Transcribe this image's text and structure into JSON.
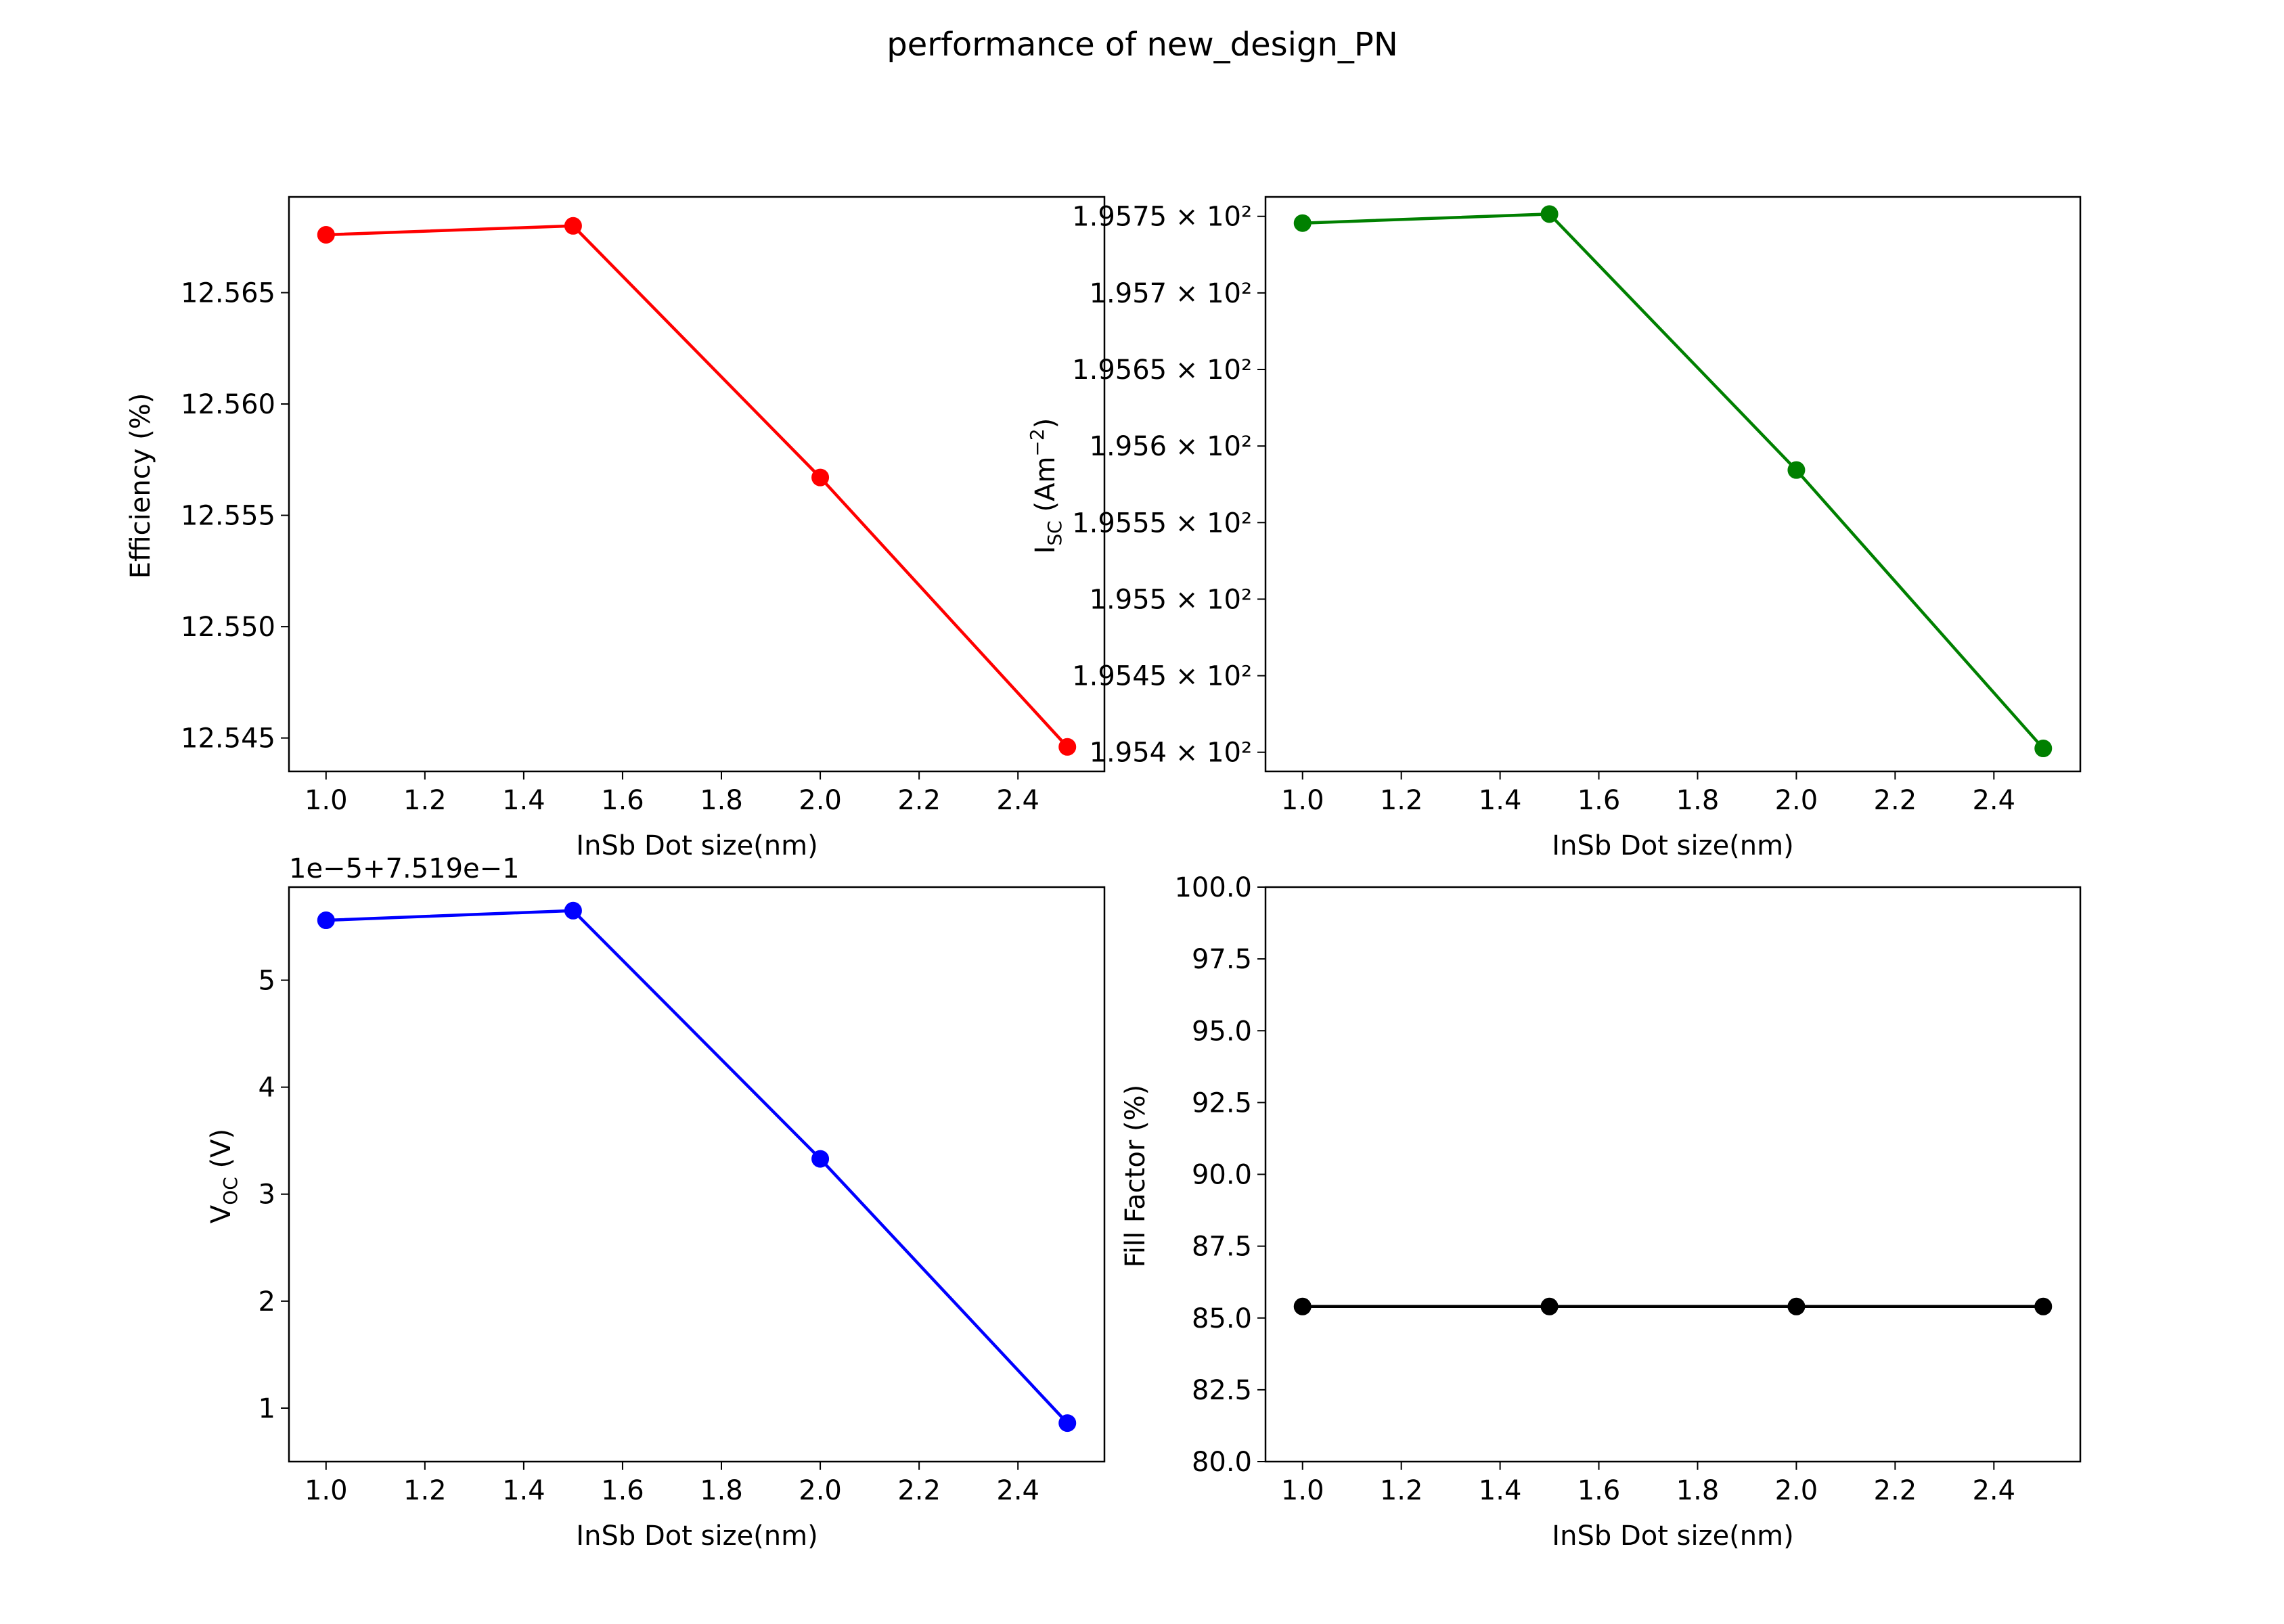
{
  "figure": {
    "title": "performance of new_design_PN"
  },
  "chart_data": [
    {
      "type": "line",
      "title": "",
      "xlabel": "InSb Dot size(nm)",
      "ylabel": "Efficiency (%)",
      "xlim": [
        0.925,
        2.575
      ],
      "ylim": [
        12.5435,
        12.5693
      ],
      "xticks": [
        1.0,
        1.2,
        1.4,
        1.6,
        1.8,
        2.0,
        2.2,
        2.4
      ],
      "xtick_labels": [
        "1.0",
        "1.2",
        "1.4",
        "1.6",
        "1.8",
        "2.0",
        "2.2",
        "2.4"
      ],
      "yticks": [
        12.545,
        12.55,
        12.555,
        12.56,
        12.565
      ],
      "ytick_labels": [
        "12.545",
        "12.550",
        "12.555",
        "12.560",
        "12.565"
      ],
      "offset_text": "",
      "series": [
        {
          "color": "#ff0000",
          "x": [
            1.0,
            1.5,
            2.0,
            2.5
          ],
          "y": [
            12.5676,
            12.568,
            12.5567,
            12.5446
          ]
        }
      ]
    },
    {
      "type": "line",
      "title": "",
      "xlabel": "InSb Dot size(nm)",
      "ylabel": "I_SC (Am^-2)",
      "ylabel_main": "I",
      "ylabel_sub": "SC",
      "ylabel_rest": " (Am",
      "ylabel_sup": "−2",
      "ylabel_end": ")",
      "xlim": [
        0.925,
        2.575
      ],
      "ylim": [
        195.3875,
        195.7627
      ],
      "xticks": [
        1.0,
        1.2,
        1.4,
        1.6,
        1.8,
        2.0,
        2.2,
        2.4
      ],
      "xtick_labels": [
        "1.0",
        "1.2",
        "1.4",
        "1.6",
        "1.8",
        "2.0",
        "2.2",
        "2.4"
      ],
      "yticks": [
        195.4,
        195.45,
        195.5,
        195.55,
        195.6,
        195.65,
        195.7,
        195.75
      ],
      "ytick_labels": [
        "1.954 × 10²",
        "1.9545 × 10²",
        "1.955 × 10²",
        "1.9555 × 10²",
        "1.956 × 10²",
        "1.9565 × 10²",
        "1.957 × 10²",
        "1.9575 × 10²"
      ],
      "offset_text": "",
      "series": [
        {
          "color": "#008000",
          "x": [
            1.0,
            1.5,
            2.0,
            2.5
          ],
          "y": [
            195.7456,
            195.7515,
            195.5843,
            195.4025
          ]
        }
      ]
    },
    {
      "type": "line",
      "title": "",
      "xlabel": "InSb Dot size(nm)",
      "ylabel": "V_OC (V)",
      "ylabel_main": "V",
      "ylabel_sub": "OC",
      "ylabel_rest": " (V)",
      "xlim": [
        0.925,
        2.575
      ],
      "ylim": [
        0.5,
        5.87
      ],
      "xticks": [
        1.0,
        1.2,
        1.4,
        1.6,
        1.8,
        2.0,
        2.2,
        2.4
      ],
      "xtick_labels": [
        "1.0",
        "1.2",
        "1.4",
        "1.6",
        "1.8",
        "2.0",
        "2.2",
        "2.4"
      ],
      "yticks": [
        1,
        2,
        3,
        4,
        5
      ],
      "ytick_labels": [
        "1",
        "2",
        "3",
        "4",
        "5"
      ],
      "offset_text": "1e−5+7.519e−1",
      "series": [
        {
          "color": "#0000ff",
          "x": [
            1.0,
            1.5,
            2.0,
            2.5
          ],
          "y": [
            5.56,
            5.65,
            3.33,
            0.86
          ]
        }
      ]
    },
    {
      "type": "line",
      "title": "",
      "xlabel": "InSb Dot size(nm)",
      "ylabel": "Fill Factor (%)",
      "xlim": [
        0.925,
        2.575
      ],
      "ylim": [
        80.0,
        100.0
      ],
      "xticks": [
        1.0,
        1.2,
        1.4,
        1.6,
        1.8,
        2.0,
        2.2,
        2.4
      ],
      "xtick_labels": [
        "1.0",
        "1.2",
        "1.4",
        "1.6",
        "1.8",
        "2.0",
        "2.2",
        "2.4"
      ],
      "yticks": [
        80.0,
        82.5,
        85.0,
        87.5,
        90.0,
        92.5,
        95.0,
        97.5,
        100.0
      ],
      "ytick_labels": [
        "80.0",
        "82.5",
        "85.0",
        "87.5",
        "90.0",
        "92.5",
        "95.0",
        "97.5",
        "100.0"
      ],
      "offset_text": "",
      "series": [
        {
          "color": "#000000",
          "x": [
            1.0,
            1.5,
            2.0,
            2.5
          ],
          "y": [
            85.4,
            85.4,
            85.4,
            85.4
          ]
        }
      ]
    }
  ]
}
